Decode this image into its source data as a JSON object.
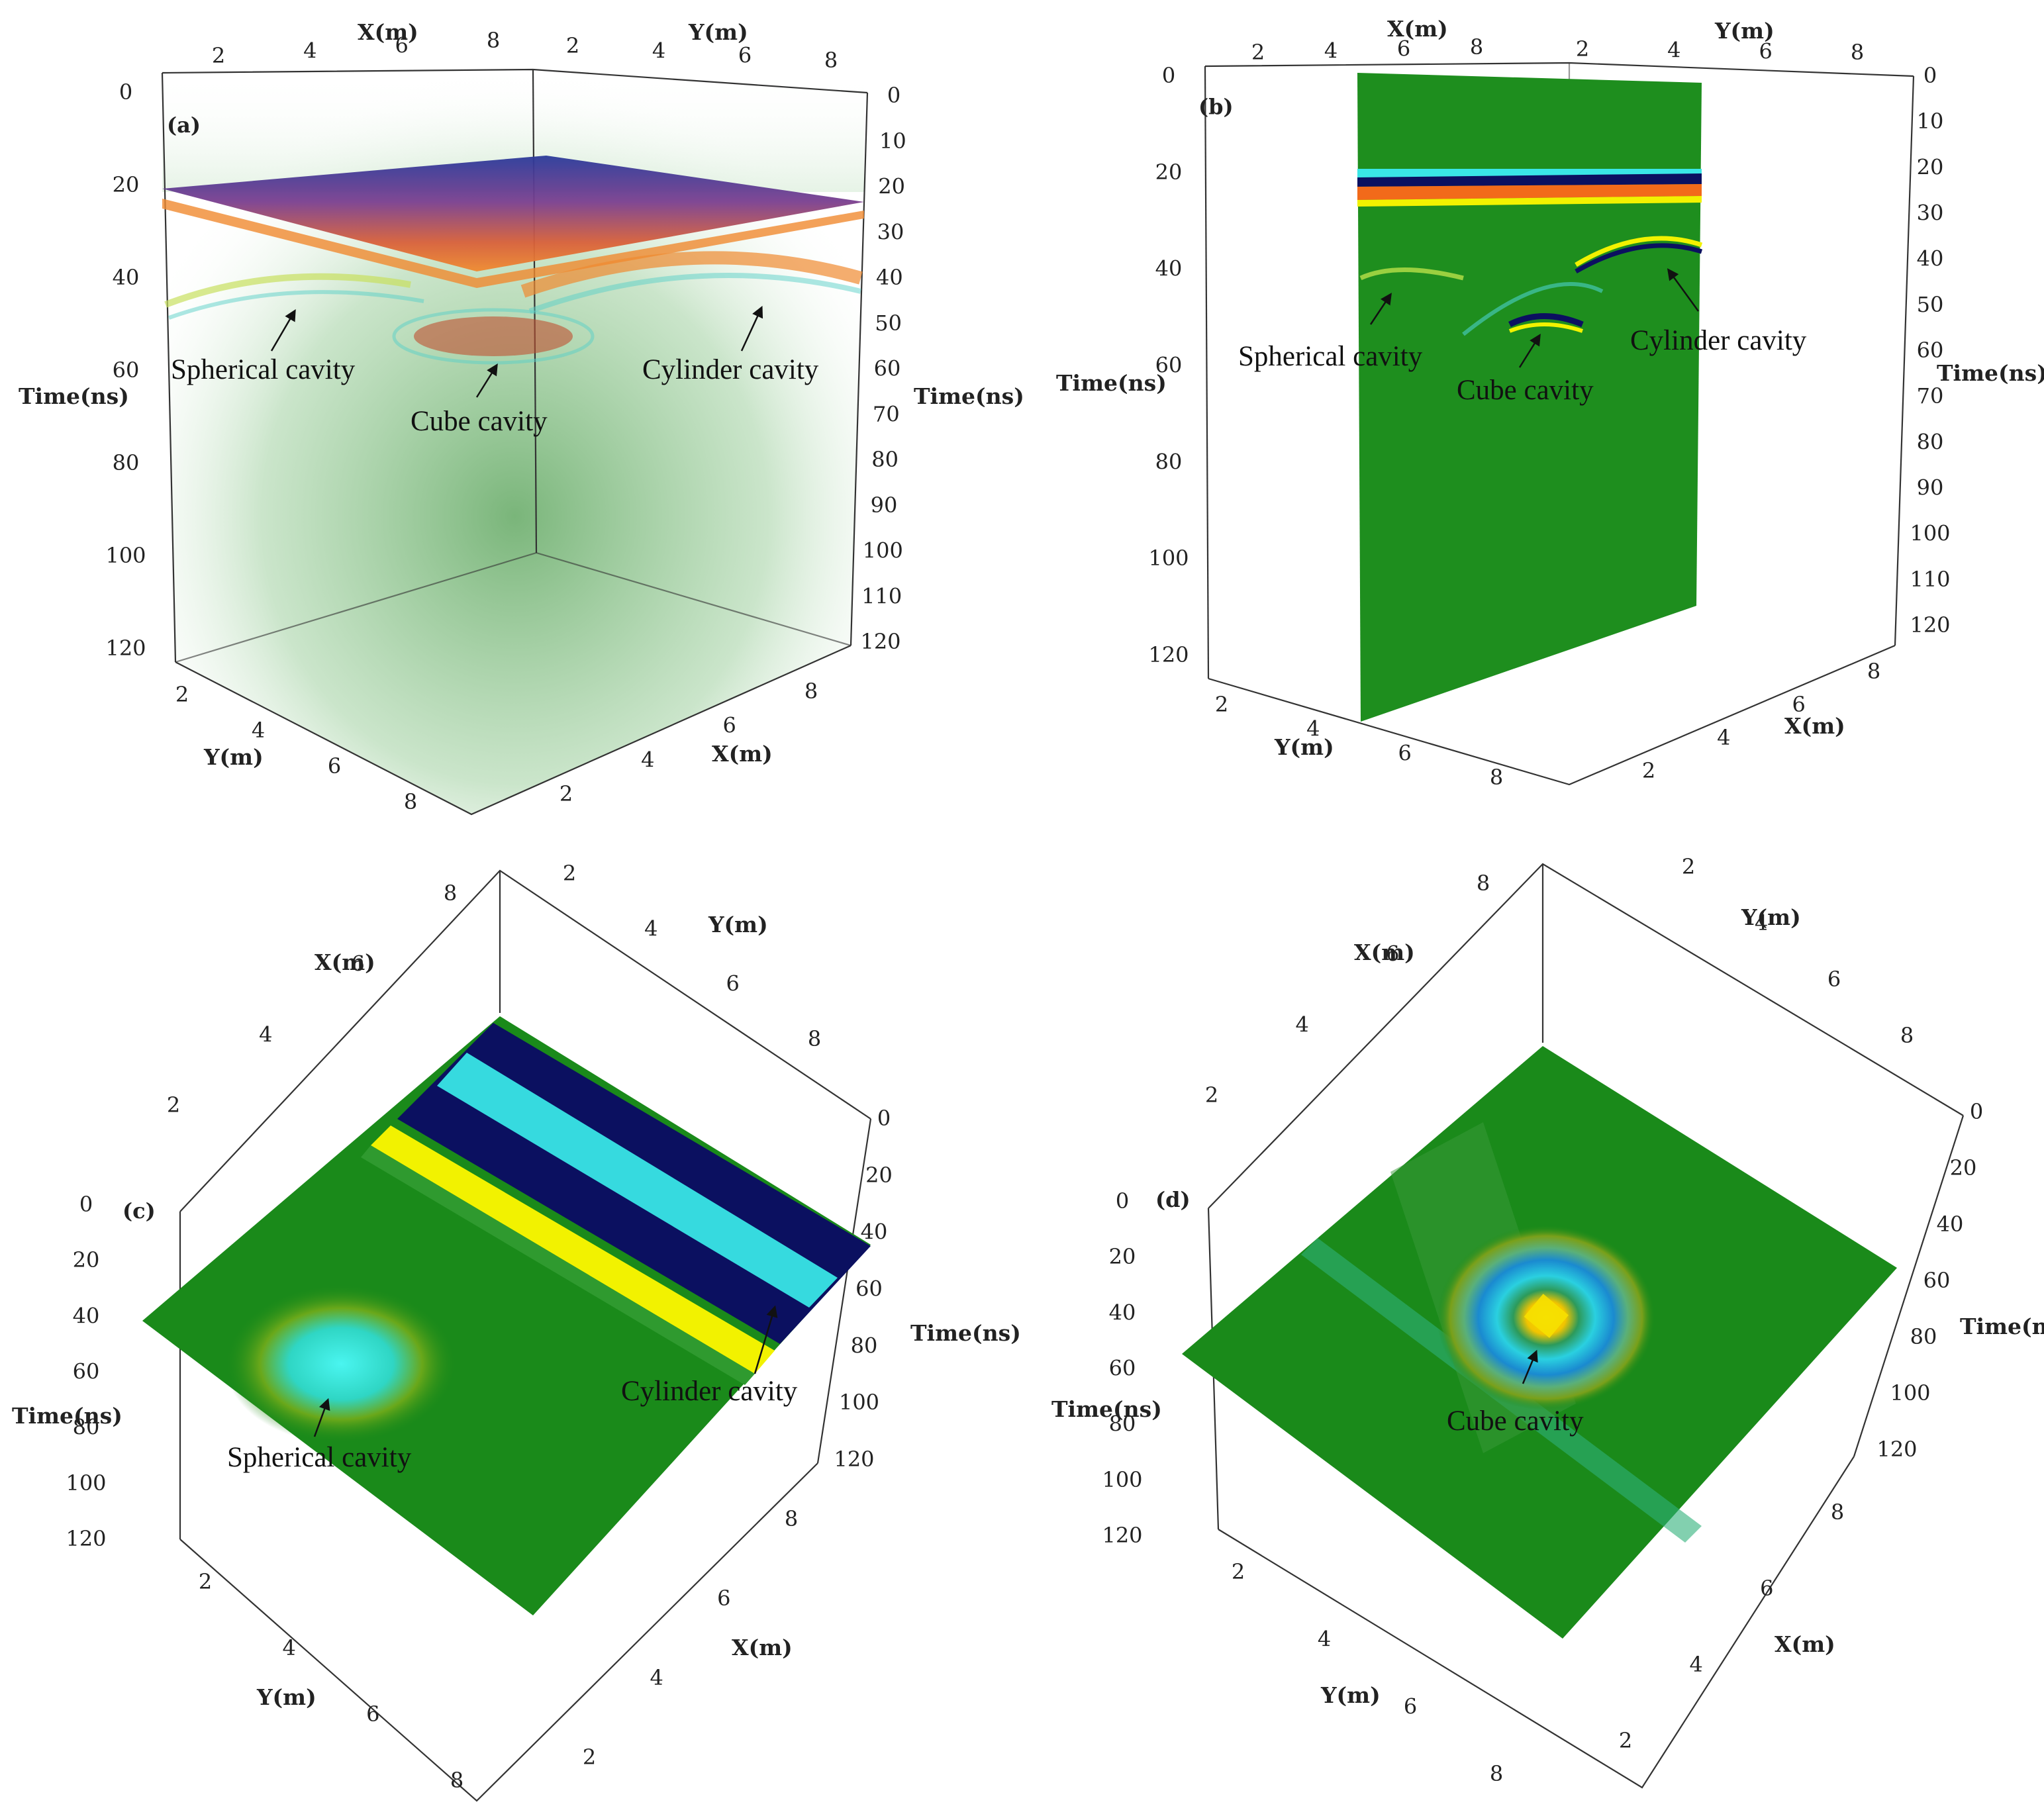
{
  "chart_data": [
    {
      "type": "other",
      "panel_label": "(a)",
      "axes": {
        "x_top": {
          "label": "X(m)",
          "ticks": [
            "2",
            "4",
            "6",
            "8"
          ]
        },
        "y_top": {
          "label": "Y(m)",
          "ticks": [
            "2",
            "4",
            "6",
            "8"
          ]
        },
        "time_left": {
          "label": "Time(ns)",
          "ticks": [
            "0",
            "20",
            "40",
            "60",
            "80",
            "100",
            "120"
          ]
        },
        "time_right": {
          "label": "Time(ns)",
          "ticks": [
            "0",
            "10",
            "20",
            "30",
            "40",
            "50",
            "60",
            "70",
            "80",
            "90",
            "100",
            "110",
            "120"
          ]
        },
        "y_bottom": {
          "label": "Y(m)",
          "ticks": [
            "2",
            "4",
            "6",
            "8"
          ]
        },
        "x_bottom": {
          "label": "X(m)",
          "ticks": [
            "2",
            "4",
            "6",
            "8"
          ]
        }
      },
      "annotations": [
        "Spherical cavity",
        "Cube cavity",
        "Cylinder cavity"
      ]
    },
    {
      "type": "other",
      "panel_label": "(b)",
      "axes": {
        "x_top": {
          "label": "X(m)",
          "ticks": [
            "2",
            "4",
            "6",
            "8"
          ]
        },
        "y_top": {
          "label": "Y(m)",
          "ticks": [
            "2",
            "4",
            "6",
            "8"
          ]
        },
        "time_left": {
          "label": "Time(ns)",
          "ticks": [
            "0",
            "20",
            "40",
            "60",
            "80",
            "100",
            "120"
          ]
        },
        "time_right": {
          "label": "Time(ns)",
          "ticks": [
            "0",
            "10",
            "20",
            "30",
            "40",
            "50",
            "60",
            "70",
            "80",
            "90",
            "100",
            "110",
            "120"
          ]
        },
        "y_bottom": {
          "label": "Y(m)",
          "ticks": [
            "2",
            "4",
            "6",
            "8"
          ]
        },
        "x_bottom": {
          "label": "X(m)",
          "ticks": [
            "2",
            "4",
            "6",
            "8"
          ]
        }
      },
      "annotations": [
        "Spherical cavity",
        "Cube cavity",
        "Cylinder cavity"
      ]
    },
    {
      "type": "other",
      "panel_label": "(c)",
      "axes": {
        "x_top": {
          "label": "X(m)",
          "ticks": [
            "2",
            "4",
            "6",
            "8"
          ]
        },
        "y_top": {
          "label": "Y(m)",
          "ticks": [
            "2",
            "4",
            "6",
            "8"
          ]
        },
        "time_left": {
          "label": "Time(ns)",
          "ticks": [
            "0",
            "20",
            "40",
            "60",
            "80",
            "100",
            "120"
          ]
        },
        "time_right": {
          "label": "Time(ns)",
          "ticks": [
            "0",
            "20",
            "40",
            "60",
            "80",
            "100",
            "120"
          ]
        },
        "y_bottom": {
          "label": "Y(m)",
          "ticks": [
            "2",
            "4",
            "6",
            "8"
          ]
        },
        "x_bottom": {
          "label": "X(m)",
          "ticks": [
            "2",
            "4",
            "6",
            "8"
          ]
        }
      },
      "annotations": [
        "Spherical cavity",
        "Cylinder cavity"
      ]
    },
    {
      "type": "other",
      "panel_label": "(d)",
      "axes": {
        "x_top": {
          "label": "X(m)",
          "ticks": [
            "2",
            "4",
            "6",
            "8"
          ]
        },
        "y_top": {
          "label": "Y(m)",
          "ticks": [
            "2",
            "4",
            "6",
            "8"
          ]
        },
        "time_left": {
          "label": "Time(ns)",
          "ticks": [
            "0",
            "20",
            "40",
            "60",
            "80",
            "100",
            "120"
          ]
        },
        "time_right": {
          "label": "Time(ns)",
          "ticks": [
            "0",
            "20",
            "40",
            "60",
            "80",
            "100",
            "120"
          ]
        },
        "y_bottom": {
          "label": "Y(m)",
          "ticks": [
            "2",
            "4",
            "6",
            "8"
          ]
        },
        "x_bottom": {
          "label": "X(m)",
          "ticks": [
            "2",
            "4",
            "6",
            "8"
          ]
        }
      },
      "annotations": [
        "Cube cavity"
      ]
    }
  ],
  "colors": {
    "background_green": "#1a8a1a",
    "dark_blue": "#0b1060",
    "cyan": "#39e6e6",
    "yellow": "#f2f200",
    "orange": "#f26a1a",
    "purple": "#6a3d8c"
  }
}
